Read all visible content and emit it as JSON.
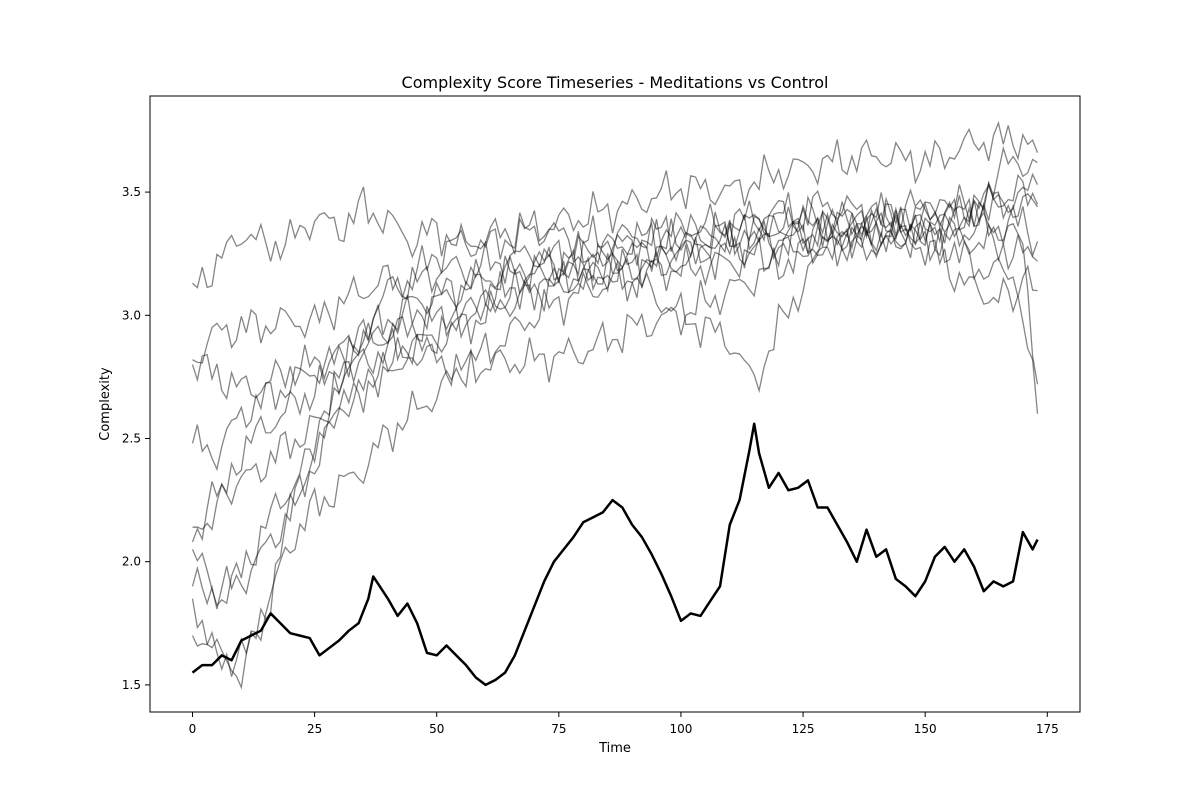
{
  "chart_data": {
    "type": "line",
    "title": "Complexity Score Timeseries - Meditations vs Control",
    "xlabel": "Time",
    "ylabel": "Complexity",
    "xlim": [
      -8.7,
      181.7
    ],
    "ylim": [
      1.39,
      3.89
    ],
    "xticks": [
      0,
      25,
      50,
      75,
      100,
      125,
      150,
      175
    ],
    "yticks": [
      1.5,
      2.0,
      2.5,
      3.0,
      3.5
    ],
    "grid": false,
    "legend": "none",
    "colors": {
      "meditation": "#808080",
      "control": "#000000"
    },
    "meditation_keypoints": [
      {
        "x": [
          0,
          5,
          10,
          15,
          20,
          25,
          30,
          35,
          40,
          45,
          50,
          55,
          60,
          70,
          80,
          90,
          100,
          110,
          120,
          130,
          140,
          150,
          160,
          170,
          173
        ],
        "y": [
          3.13,
          3.2,
          3.34,
          3.28,
          3.3,
          3.4,
          3.35,
          3.44,
          3.38,
          3.3,
          3.35,
          3.28,
          3.32,
          3.35,
          3.4,
          3.45,
          3.52,
          3.5,
          3.58,
          3.62,
          3.65,
          3.62,
          3.7,
          3.72,
          3.66
        ]
      },
      {
        "x": [
          0,
          5,
          10,
          15,
          20,
          25,
          30,
          35,
          40,
          45,
          50,
          60,
          70,
          80,
          90,
          100,
          110,
          120,
          130,
          140,
          150,
          160,
          170,
          173
        ],
        "y": [
          2.82,
          2.93,
          2.95,
          2.96,
          2.98,
          2.97,
          3.05,
          3.1,
          3.15,
          3.12,
          3.18,
          3.2,
          3.25,
          3.22,
          3.3,
          3.28,
          3.32,
          3.36,
          3.34,
          3.38,
          3.42,
          3.45,
          3.48,
          3.53
        ]
      },
      {
        "x": [
          0,
          5,
          10,
          15,
          20,
          25,
          30,
          35,
          40,
          45,
          50,
          55,
          60,
          70,
          80,
          90,
          100,
          110,
          115,
          120,
          130,
          140,
          150,
          160,
          170,
          173
        ],
        "y": [
          2.8,
          2.76,
          2.7,
          2.72,
          2.78,
          2.8,
          2.85,
          2.92,
          2.98,
          3.05,
          3.08,
          3.12,
          3.15,
          3.2,
          3.18,
          3.15,
          3.0,
          2.9,
          2.72,
          2.95,
          3.3,
          3.35,
          3.3,
          3.35,
          3.38,
          3.3
        ]
      },
      {
        "x": [
          0,
          5,
          10,
          15,
          20,
          25,
          30,
          35,
          40,
          45,
          50,
          55,
          60,
          65,
          70,
          80,
          90,
          100,
          110,
          120,
          130,
          140,
          150,
          160,
          165,
          170,
          173
        ],
        "y": [
          2.48,
          2.44,
          2.6,
          2.66,
          2.72,
          2.78,
          2.82,
          2.88,
          2.92,
          2.95,
          2.98,
          3.0,
          3.05,
          3.1,
          3.15,
          3.2,
          3.25,
          3.3,
          3.33,
          3.35,
          3.38,
          3.4,
          3.35,
          3.4,
          3.6,
          3.62,
          3.62
        ]
      },
      {
        "x": [
          0,
          5,
          10,
          15,
          20,
          25,
          30,
          35,
          40,
          45,
          50,
          55,
          60,
          70,
          80,
          90,
          100,
          110,
          120,
          130,
          140,
          150,
          160,
          170,
          173
        ],
        "y": [
          2.14,
          2.2,
          2.45,
          2.55,
          2.62,
          2.7,
          2.76,
          2.82,
          2.85,
          2.88,
          2.9,
          2.95,
          3.0,
          3.1,
          3.15,
          3.2,
          3.22,
          3.25,
          3.3,
          3.28,
          3.32,
          3.35,
          3.2,
          3.15,
          3.1
        ]
      },
      {
        "x": [
          0,
          5,
          10,
          15,
          20,
          25,
          30,
          35,
          40,
          45,
          50,
          55,
          60,
          70,
          80,
          90,
          100,
          110,
          120,
          130,
          140,
          150,
          160,
          170,
          173
        ],
        "y": [
          2.08,
          2.28,
          2.32,
          2.4,
          2.48,
          2.55,
          2.62,
          2.7,
          2.78,
          2.85,
          2.92,
          2.98,
          3.05,
          3.12,
          3.15,
          3.2,
          3.18,
          3.22,
          3.25,
          3.3,
          3.28,
          3.32,
          3.3,
          3.25,
          3.22
        ]
      },
      {
        "x": [
          0,
          5,
          10,
          15,
          20,
          25,
          30,
          35,
          40,
          45,
          50,
          55,
          60,
          70,
          80,
          90,
          100,
          110,
          120,
          130,
          140,
          150,
          160,
          170,
          173
        ],
        "y": [
          2.05,
          1.85,
          1.95,
          2.15,
          2.3,
          2.45,
          2.75,
          2.85,
          2.95,
          3.0,
          3.05,
          3.1,
          3.12,
          3.2,
          3.25,
          3.3,
          3.35,
          3.38,
          3.42,
          3.38,
          3.4,
          3.45,
          3.4,
          3.3,
          2.72
        ]
      },
      {
        "x": [
          0,
          5,
          10,
          15,
          20,
          25,
          30,
          35,
          40,
          45,
          50,
          55,
          60,
          70,
          80,
          90,
          100,
          110,
          120,
          130,
          140,
          150,
          160,
          170,
          173
        ],
        "y": [
          1.9,
          1.88,
          1.92,
          2.05,
          2.2,
          2.4,
          2.62,
          2.7,
          2.8,
          2.85,
          2.82,
          2.78,
          2.8,
          2.82,
          2.85,
          2.95,
          3.0,
          3.1,
          3.2,
          3.3,
          3.35,
          3.28,
          3.1,
          3.05,
          2.6
        ]
      },
      {
        "x": [
          0,
          5,
          10,
          15,
          20,
          25,
          30,
          35,
          40,
          45,
          50,
          55,
          60,
          70,
          80,
          90,
          100,
          110,
          120,
          130,
          140,
          150,
          160,
          170,
          173
        ],
        "y": [
          1.85,
          1.62,
          1.55,
          1.8,
          2.2,
          2.45,
          2.75,
          2.95,
          3.1,
          3.15,
          3.25,
          3.3,
          3.28,
          3.35,
          3.3,
          3.32,
          3.35,
          3.28,
          3.32,
          3.35,
          3.3,
          3.38,
          3.42,
          3.45,
          3.44
        ]
      },
      {
        "x": [
          0,
          5,
          10,
          15,
          20,
          25,
          30,
          35,
          40,
          45,
          50,
          55,
          60,
          70,
          80,
          90,
          100,
          110,
          120,
          130,
          140,
          150,
          160,
          170,
          173
        ],
        "y": [
          1.7,
          1.62,
          1.6,
          1.8,
          2.08,
          2.22,
          2.3,
          2.38,
          2.52,
          2.6,
          2.68,
          2.78,
          2.85,
          3.0,
          3.1,
          3.15,
          3.25,
          3.35,
          3.4,
          3.45,
          3.4,
          3.35,
          3.45,
          3.5,
          3.45
        ]
      }
    ],
    "control_keypoints": {
      "x": [
        0,
        2,
        4,
        6,
        8,
        10,
        12,
        14,
        16,
        18,
        20,
        22,
        24,
        26,
        28,
        30,
        32,
        34,
        36,
        37,
        38,
        40,
        42,
        44,
        46,
        48,
        50,
        52,
        54,
        56,
        58,
        60,
        62,
        64,
        66,
        68,
        70,
        72,
        74,
        76,
        78,
        80,
        82,
        84,
        86,
        88,
        90,
        92,
        94,
        96,
        98,
        100,
        102,
        104,
        106,
        108,
        110,
        112,
        114,
        115,
        116,
        118,
        120,
        122,
        124,
        126,
        128,
        130,
        132,
        134,
        136,
        138,
        140,
        142,
        144,
        146,
        148,
        150,
        152,
        154,
        156,
        158,
        160,
        162,
        164,
        166,
        168,
        170,
        172,
        173
      ],
      "y": [
        1.55,
        1.58,
        1.58,
        1.62,
        1.6,
        1.68,
        1.7,
        1.72,
        1.79,
        1.75,
        1.71,
        1.7,
        1.69,
        1.62,
        1.65,
        1.68,
        1.72,
        1.75,
        1.85,
        1.94,
        1.91,
        1.85,
        1.78,
        1.83,
        1.75,
        1.63,
        1.62,
        1.66,
        1.62,
        1.58,
        1.53,
        1.5,
        1.52,
        1.55,
        1.62,
        1.72,
        1.82,
        1.92,
        2.0,
        2.05,
        2.1,
        2.16,
        2.18,
        2.2,
        2.25,
        2.22,
        2.15,
        2.1,
        2.03,
        1.95,
        1.86,
        1.76,
        1.79,
        1.78,
        1.84,
        1.9,
        2.15,
        2.25,
        2.45,
        2.56,
        2.44,
        2.3,
        2.36,
        2.29,
        2.3,
        2.33,
        2.22,
        2.22,
        2.15,
        2.08,
        2.0,
        2.13,
        2.02,
        2.05,
        1.93,
        1.9,
        1.86,
        1.92,
        2.02,
        2.06,
        2.0,
        2.05,
        1.98,
        1.88,
        1.92,
        1.9,
        1.92,
        2.12,
        2.05,
        2.09
      ]
    }
  }
}
